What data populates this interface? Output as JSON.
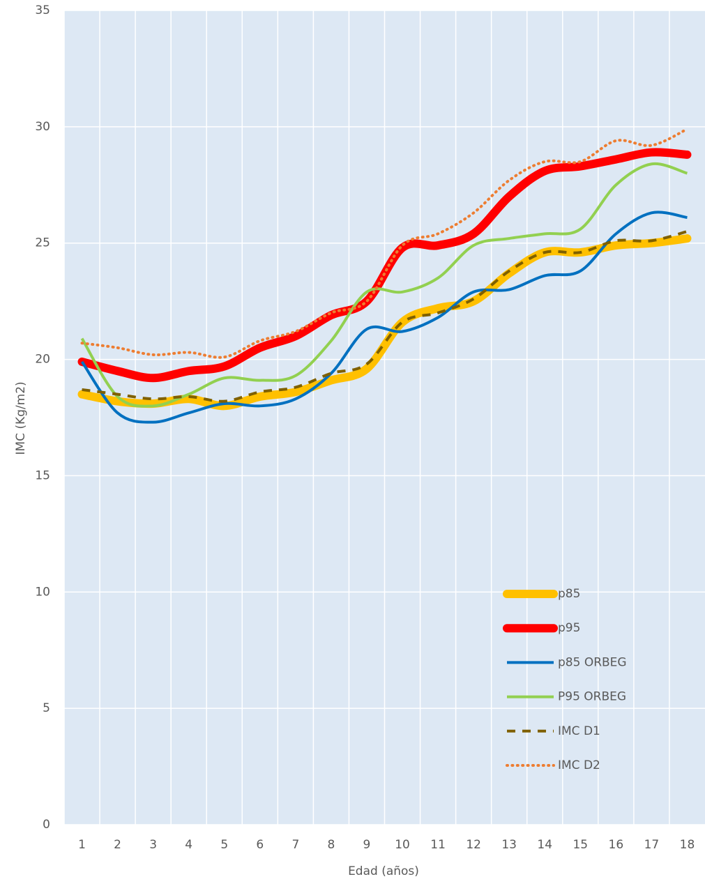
{
  "chart_data": {
    "type": "line",
    "x_label": "Edad (años)",
    "y_label": "IMC (Kg/m2)",
    "categories": [
      "1",
      "2",
      "3",
      "4",
      "5",
      "6",
      "7",
      "8",
      "9",
      "10",
      "11",
      "12",
      "13",
      "14",
      "15",
      "16",
      "17",
      "18"
    ],
    "ylim": [
      0,
      35
    ],
    "yticks": [
      0,
      5,
      10,
      15,
      20,
      25,
      30,
      35
    ],
    "grid": true,
    "legend": "lower right",
    "series": [
      {
        "name": "p85",
        "color": "#ffc000",
        "width": 12,
        "dash": "solid",
        "values": [
          18.5,
          18.2,
          18.1,
          18.3,
          18.0,
          18.4,
          18.6,
          19.1,
          19.6,
          21.6,
          22.2,
          22.5,
          23.7,
          24.6,
          24.6,
          24.9,
          25.0,
          25.2
        ]
      },
      {
        "name": "p95",
        "color": "#ff0000",
        "width": 12,
        "dash": "solid",
        "values": [
          19.9,
          19.5,
          19.2,
          19.5,
          19.7,
          20.5,
          21.0,
          21.9,
          22.5,
          24.8,
          24.9,
          25.4,
          27.0,
          28.1,
          28.3,
          28.6,
          28.9,
          28.8
        ]
      },
      {
        "name": "p85 ORBEG",
        "color": "#0070c0",
        "width": 4,
        "dash": "solid",
        "values": [
          19.9,
          17.7,
          17.3,
          17.7,
          18.1,
          18.0,
          18.3,
          19.4,
          21.3,
          21.2,
          21.8,
          22.9,
          23.0,
          23.6,
          23.8,
          25.4,
          26.3,
          26.1
        ]
      },
      {
        "name": "P95 ORBEG",
        "color": "#92d050",
        "width": 4,
        "dash": "solid",
        "values": [
          20.9,
          18.4,
          18.0,
          18.5,
          19.2,
          19.1,
          19.3,
          20.8,
          22.9,
          22.9,
          23.5,
          24.9,
          25.2,
          25.4,
          25.6,
          27.5,
          28.4,
          28.0
        ]
      },
      {
        "name": "IMC D1",
        "color": "#7f6000",
        "width": 4,
        "dash": "dashed",
        "values": [
          18.7,
          18.5,
          18.3,
          18.4,
          18.2,
          18.6,
          18.8,
          19.4,
          19.8,
          21.6,
          22.0,
          22.6,
          23.8,
          24.6,
          24.6,
          25.1,
          25.1,
          25.5
        ]
      },
      {
        "name": "IMC D2",
        "color": "#ed7d31",
        "width": 4,
        "dash": "dotted",
        "values": [
          20.7,
          20.5,
          20.2,
          20.3,
          20.1,
          20.8,
          21.2,
          22.0,
          22.5,
          24.9,
          25.4,
          26.3,
          27.7,
          28.5,
          28.5,
          29.4,
          29.2,
          29.9
        ]
      }
    ]
  }
}
